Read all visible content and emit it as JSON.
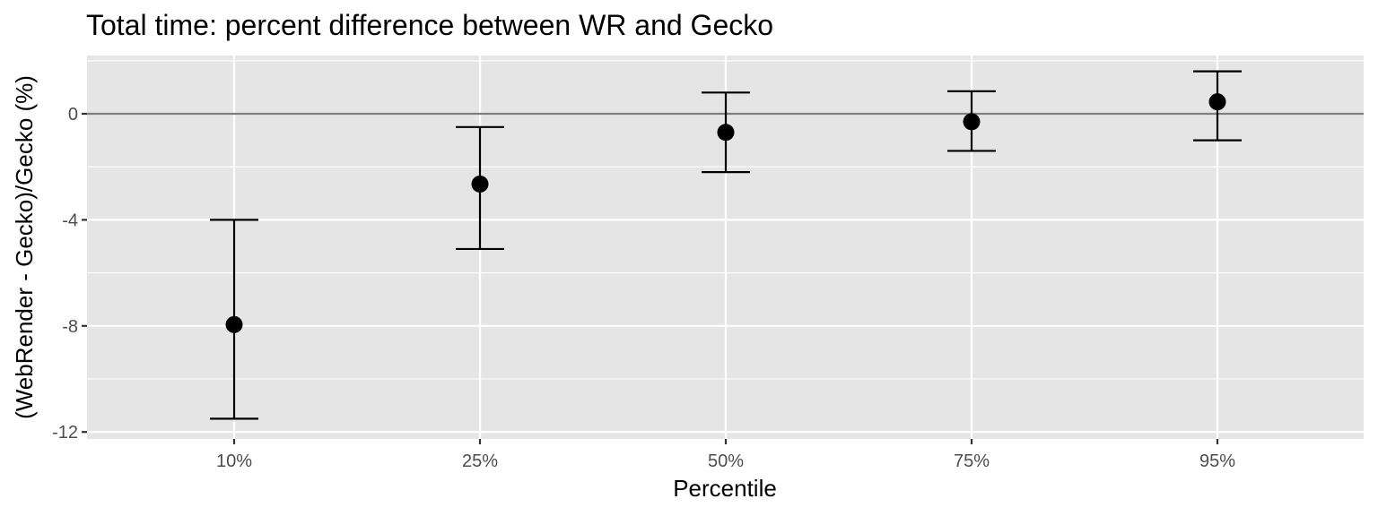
{
  "chart_data": {
    "type": "scatter",
    "title": "Total time: percent difference between WR and Gecko",
    "xlabel": "Percentile",
    "ylabel": "(WebRender - Gecko)/Gecko (%)",
    "categories": [
      "10%",
      "25%",
      "50%",
      "75%",
      "95%"
    ],
    "y_ticks": [
      "0",
      "-4",
      "-8",
      "-12"
    ],
    "y_tick_values": [
      0,
      -4,
      -8,
      -12
    ],
    "ylim": [
      -12.1,
      2.2
    ],
    "reference_line": 0,
    "grid": true,
    "series": [
      {
        "values": [
          -7.95,
          -2.65,
          -0.7,
          -0.3,
          0.45
        ],
        "lower": [
          -11.5,
          -5.1,
          -2.2,
          -1.4,
          -1.0
        ],
        "upper": [
          -4.0,
          -0.5,
          0.8,
          0.85,
          1.6
        ]
      }
    ],
    "colors": {
      "panel": "#e5e5e5",
      "grid": "#ffffff",
      "point": "#000000",
      "reference_line": "#7f7f7f",
      "tick_text": "#4d4d4d"
    }
  }
}
